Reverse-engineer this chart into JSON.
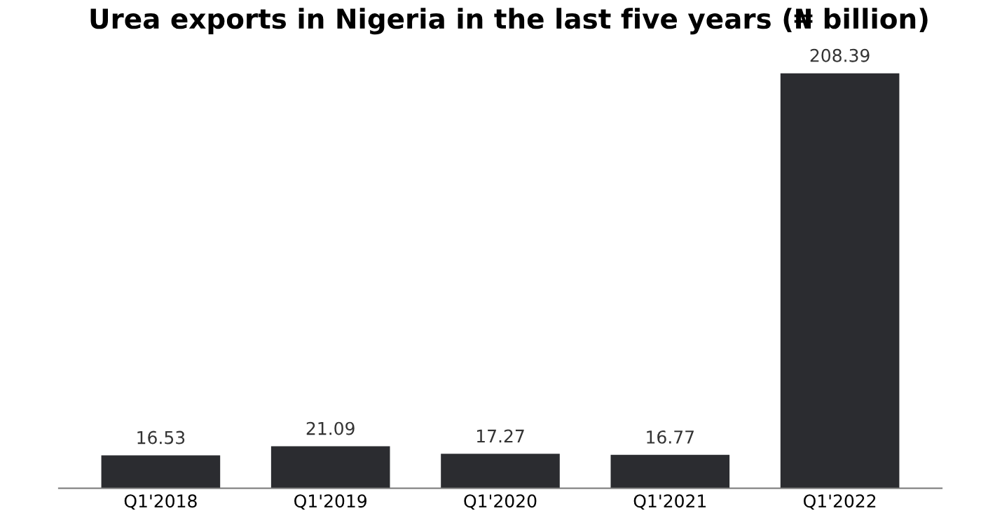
{
  "chart_data": {
    "type": "bar",
    "title": "Urea exports in Nigeria in the last five years (₦ billion)",
    "categories": [
      "Q1'2018",
      "Q1'2019",
      "Q1'2020",
      "Q1'2021",
      "Q1'2022"
    ],
    "values": [
      16.53,
      21.09,
      17.27,
      16.77,
      208.39
    ],
    "color": "#2b2c30",
    "data_labels": true,
    "grid": false,
    "legend": false
  }
}
